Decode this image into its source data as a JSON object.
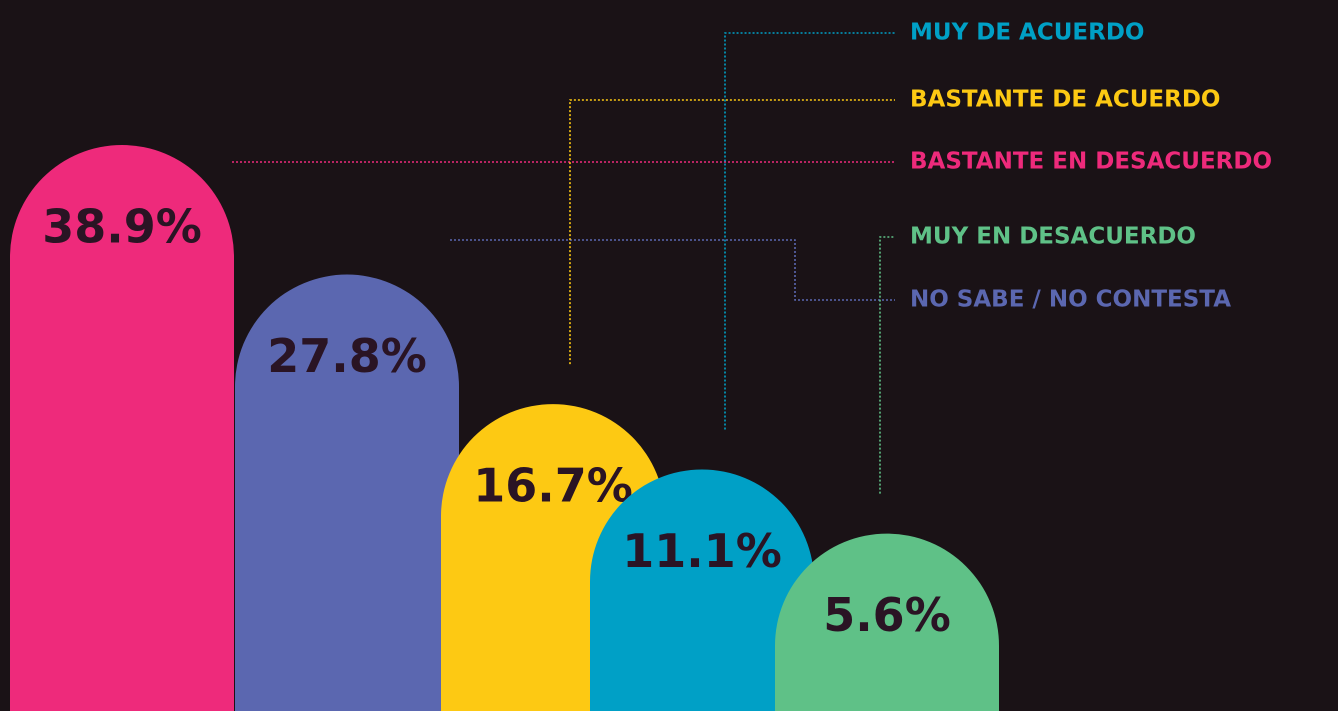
{
  "chart_data": {
    "type": "bar",
    "series": [
      {
        "name": "BASTANTE EN DESACUERDO",
        "color": "#ee2a7b",
        "values": [
          38.9
        ],
        "value_labels": [
          "38.9%"
        ]
      },
      {
        "name": "NO SABE / NO CONTESTA",
        "color": "#5b67b0",
        "values": [
          27.8
        ],
        "value_labels": [
          "27.8%"
        ]
      },
      {
        "name": "BASTANTE DE ACUERDO",
        "color": "#fdc913",
        "values": [
          16.7
        ],
        "value_labels": [
          "16.7%"
        ]
      },
      {
        "name": "MUY DE ACUERDO",
        "color": "#00a0c6",
        "values": [
          11.1
        ],
        "value_labels": [
          "11.1%"
        ]
      },
      {
        "name": "MUY EN DESACUERDO",
        "color": "#5fc187",
        "values": [
          5.6
        ],
        "value_labels": [
          "5.6%"
        ]
      }
    ]
  }
}
